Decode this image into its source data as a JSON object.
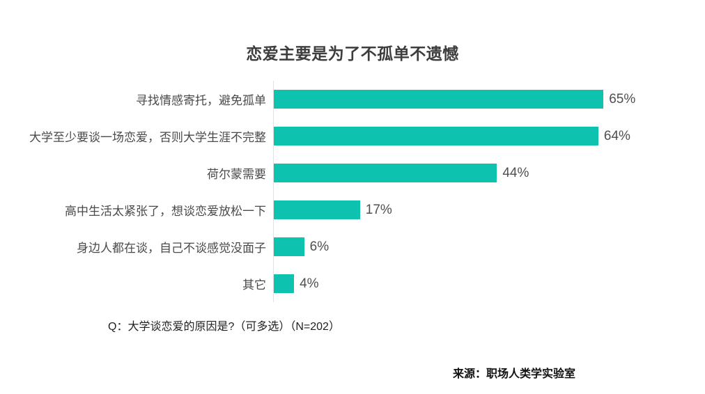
{
  "title": "恋爱主要是为了不孤单不遗憾",
  "chart_data": {
    "type": "bar",
    "orientation": "horizontal",
    "title": "恋爱主要是为了不孤单不遗憾",
    "categories": [
      "寻找情感寄托，避免孤单",
      "大学至少要谈一场恋爱，否则大学生涯不完整",
      "荷尔蒙需要",
      "高中生活太紧张了，想谈恋爱放松一下",
      "身边人都在谈，自己不谈感觉没面子",
      "其它"
    ],
    "values": [
      65,
      64,
      44,
      17,
      6,
      4
    ],
    "value_labels": [
      "65%",
      "64%",
      "44%",
      "17%",
      "6%",
      "4%"
    ],
    "xlabel": "",
    "ylabel": "",
    "xlim": [
      0,
      100
    ],
    "grid": false,
    "legend": false,
    "bar_color": "#0ec2b0",
    "axis_line_color": "#e2e2e2"
  },
  "footnote": "Q：大学谈恋爱的原因是?（可多选）（N=202）",
  "source": "来源：职场人类学实验室"
}
